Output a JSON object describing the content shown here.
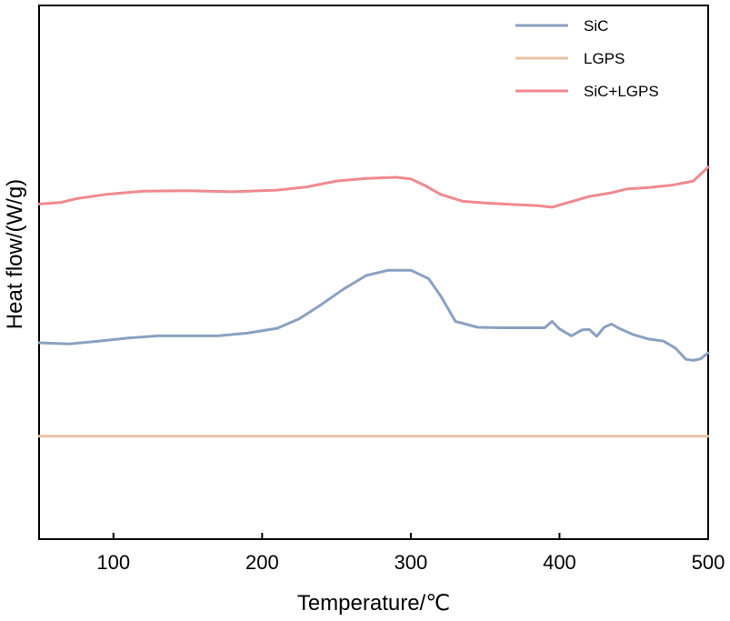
{
  "chart_data": {
    "type": "line",
    "title": "",
    "xlabel": "Temperature/℃",
    "ylabel": "Heat flow/(W/g)",
    "xlim": [
      50,
      500
    ],
    "ylim": [
      0,
      100
    ],
    "xticks": [
      100,
      200,
      300,
      400,
      500
    ],
    "yticks_shown": false,
    "grid": false,
    "legend_position": "top-right",
    "series": [
      {
        "name": "SiC",
        "color": "#8aa1c1",
        "x": [
          50,
          70,
          90,
          110,
          130,
          150,
          170,
          190,
          210,
          225,
          240,
          255,
          270,
          285,
          300,
          312,
          320,
          330,
          345,
          360,
          375,
          390,
          395,
          400,
          408,
          415,
          420,
          425,
          430,
          435,
          440,
          450,
          460,
          470,
          478,
          485,
          490,
          495,
          500
        ],
        "y": [
          36.8,
          36.6,
          37.1,
          37.7,
          38.1,
          38.1,
          38.1,
          38.6,
          39.5,
          41.3,
          44.0,
          46.9,
          49.4,
          50.4,
          50.4,
          48.8,
          45.6,
          40.8,
          39.7,
          39.6,
          39.6,
          39.6,
          40.8,
          39.4,
          38.1,
          39.2,
          39.3,
          38.0,
          39.7,
          40.3,
          39.5,
          38.3,
          37.5,
          37.1,
          35.8,
          33.7,
          33.5,
          33.8,
          34.9
        ]
      },
      {
        "name": "LGPS",
        "color": "#e8c2a4",
        "x": [
          50,
          100,
          150,
          200,
          250,
          300,
          350,
          400,
          450,
          500
        ],
        "y": [
          19.3,
          19.3,
          19.3,
          19.3,
          19.3,
          19.3,
          19.3,
          19.3,
          19.3,
          19.3
        ]
      },
      {
        "name": "SiC+LGPS",
        "color": "#ef8a90",
        "x": [
          50,
          65,
          75,
          95,
          120,
          150,
          180,
          210,
          230,
          250,
          270,
          290,
          300,
          310,
          320,
          335,
          350,
          370,
          385,
          395,
          400,
          410,
          420,
          435,
          445,
          460,
          475,
          490,
          500
        ],
        "y": [
          62.8,
          63.1,
          63.8,
          64.6,
          65.2,
          65.3,
          65.1,
          65.4,
          66.0,
          67.1,
          67.6,
          67.8,
          67.5,
          66.2,
          64.6,
          63.3,
          63.0,
          62.7,
          62.5,
          62.2,
          62.6,
          63.4,
          64.2,
          64.9,
          65.6,
          65.9,
          66.3,
          67.1,
          69.7
        ]
      }
    ]
  }
}
